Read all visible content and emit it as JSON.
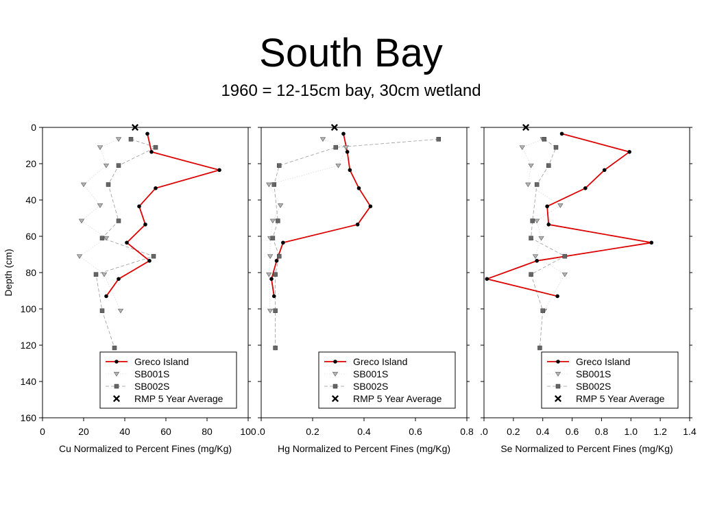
{
  "header": {
    "title": "South Bay",
    "subtitle": "1960 = 12-15cm bay, 30cm wetland"
  },
  "colors": {
    "greco": "#dd0000",
    "sb001s": "#a8a8a8",
    "sb002s": "#666666",
    "rmp": "#000000"
  },
  "y_axis": {
    "label": "Depth (cm)",
    "ticks": [
      0,
      20,
      40,
      60,
      80,
      100,
      120,
      140,
      160
    ],
    "range": [
      0,
      160
    ],
    "inverted": true
  },
  "chart_data": [
    {
      "type": "line",
      "xlabel": "Cu Normalized to Percent Fines (mg/Kg)",
      "ylabel": "Depth (cm)",
      "xlim": [
        0,
        100
      ],
      "ylim": [
        0,
        160
      ],
      "x_ticks": [
        "0",
        "20",
        "40",
        "60",
        "80",
        "100"
      ],
      "legend_position": "bottom-right",
      "series": [
        {
          "name": "Greco Island",
          "style": "line",
          "points": [
            [
              51,
              3.5
            ],
            [
              53,
              13.5
            ],
            [
              86,
              23.5
            ],
            [
              55,
              33.5
            ],
            [
              47,
              43.5
            ],
            [
              50,
              53.5
            ],
            [
              41,
              63.5
            ],
            [
              52,
              73.5
            ],
            [
              37,
              83.5
            ],
            [
              31,
              93
            ]
          ]
        },
        {
          "name": "SB001S",
          "style": "triangle",
          "points": [
            [
              37,
              6.5
            ],
            [
              28,
              11
            ],
            [
              31,
              21
            ],
            [
              20,
              31.5
            ],
            [
              28,
              43
            ],
            [
              19,
              51.5
            ],
            [
              31,
              61
            ],
            [
              18,
              71
            ],
            [
              30,
              81
            ],
            [
              38,
              101
            ]
          ]
        },
        {
          "name": "SB002S",
          "style": "dashed-square",
          "points": [
            [
              43,
              6.5
            ],
            [
              55,
              11
            ],
            [
              37,
              21
            ],
            [
              32,
              31.5
            ],
            [
              37,
              51.5
            ],
            [
              29,
              61
            ],
            [
              54,
              71
            ],
            [
              26,
              81
            ],
            [
              29,
              101
            ],
            [
              35,
              121.5
            ]
          ]
        },
        {
          "name": "RMP 5 Year Average",
          "style": "x",
          "points": [
            [
              45,
              0
            ]
          ]
        }
      ]
    },
    {
      "type": "line",
      "xlabel": "Hg Normalized to Percent Fines (mg/Kg)",
      "ylabel": "",
      "xlim": [
        0,
        0.8
      ],
      "ylim": [
        0,
        160
      ],
      "x_ticks": [
        ".0",
        "0.2",
        "0.4",
        "0.6",
        "0.8"
      ],
      "legend_position": "bottom-right",
      "series": [
        {
          "name": "Greco Island",
          "style": "line",
          "points": [
            [
              0.32,
              3.5
            ],
            [
              0.335,
              13.5
            ],
            [
              0.345,
              23.5
            ],
            [
              0.38,
              33.5
            ],
            [
              0.425,
              43.5
            ],
            [
              0.375,
              53.5
            ],
            [
              0.085,
              63.5
            ],
            [
              0.06,
              73.5
            ],
            [
              0.04,
              83.5
            ],
            [
              0.05,
              93
            ]
          ]
        },
        {
          "name": "SB001S",
          "style": "triangle",
          "points": [
            [
              0.24,
              6.5
            ],
            [
              0.33,
              11
            ],
            [
              0.3,
              21
            ],
            [
              0.03,
              31.5
            ],
            [
              0.075,
              43
            ],
            [
              0.045,
              51.5
            ],
            [
              0.035,
              61
            ],
            [
              0.035,
              71
            ],
            [
              0.03,
              81
            ],
            [
              0.035,
              101
            ]
          ]
        },
        {
          "name": "SB002S",
          "style": "dashed-square",
          "points": [
            [
              0.69,
              6.5
            ],
            [
              0.29,
              11
            ],
            [
              0.07,
              21
            ],
            [
              0.05,
              31.5
            ],
            [
              0.065,
              51.5
            ],
            [
              0.045,
              61
            ],
            [
              0.07,
              71
            ],
            [
              0.055,
              81
            ],
            [
              0.055,
              101
            ],
            [
              0.055,
              121.5
            ]
          ]
        },
        {
          "name": "RMP 5 Year Average",
          "style": "x",
          "points": [
            [
              0.285,
              0
            ]
          ]
        }
      ]
    },
    {
      "type": "line",
      "xlabel": "Se Normalized to Percent Fines (mg/Kg)",
      "ylabel": "",
      "xlim": [
        0,
        1.4
      ],
      "ylim": [
        0,
        160
      ],
      "x_ticks": [
        ".0",
        "0.2",
        "0.4",
        "0.6",
        "0.8",
        "1.0",
        "1.2",
        "1.4"
      ],
      "legend_position": "bottom-right",
      "series": [
        {
          "name": "Greco Island",
          "style": "line",
          "points": [
            [
              0.53,
              3.5
            ],
            [
              0.99,
              13.5
            ],
            [
              0.82,
              23.5
            ],
            [
              0.69,
              33.5
            ],
            [
              0.43,
              43.5
            ],
            [
              0.44,
              53.5
            ],
            [
              1.14,
              63.5
            ],
            [
              0.36,
              73.5
            ],
            [
              0.02,
              83.5
            ],
            [
              0.5,
              93
            ]
          ]
        },
        {
          "name": "SB001S",
          "style": "triangle",
          "points": [
            [
              0.4,
              6.5
            ],
            [
              0.26,
              11
            ],
            [
              0.32,
              21
            ],
            [
              0.3,
              31.5
            ],
            [
              0.52,
              43
            ],
            [
              0.36,
              51.5
            ],
            [
              0.39,
              61
            ],
            [
              0.35,
              71
            ],
            [
              0.55,
              81
            ],
            [
              0.41,
              101
            ]
          ]
        },
        {
          "name": "SB002S",
          "style": "dashed-square",
          "points": [
            [
              0.41,
              6.5
            ],
            [
              0.49,
              11
            ],
            [
              0.44,
              21
            ],
            [
              0.36,
              31.5
            ],
            [
              0.33,
              51.5
            ],
            [
              0.32,
              61
            ],
            [
              0.55,
              71
            ],
            [
              0.32,
              81
            ],
            [
              0.4,
              101
            ],
            [
              0.38,
              121.5
            ]
          ]
        },
        {
          "name": "RMP 5 Year Average",
          "style": "x",
          "points": [
            [
              0.285,
              0
            ]
          ]
        }
      ]
    }
  ]
}
